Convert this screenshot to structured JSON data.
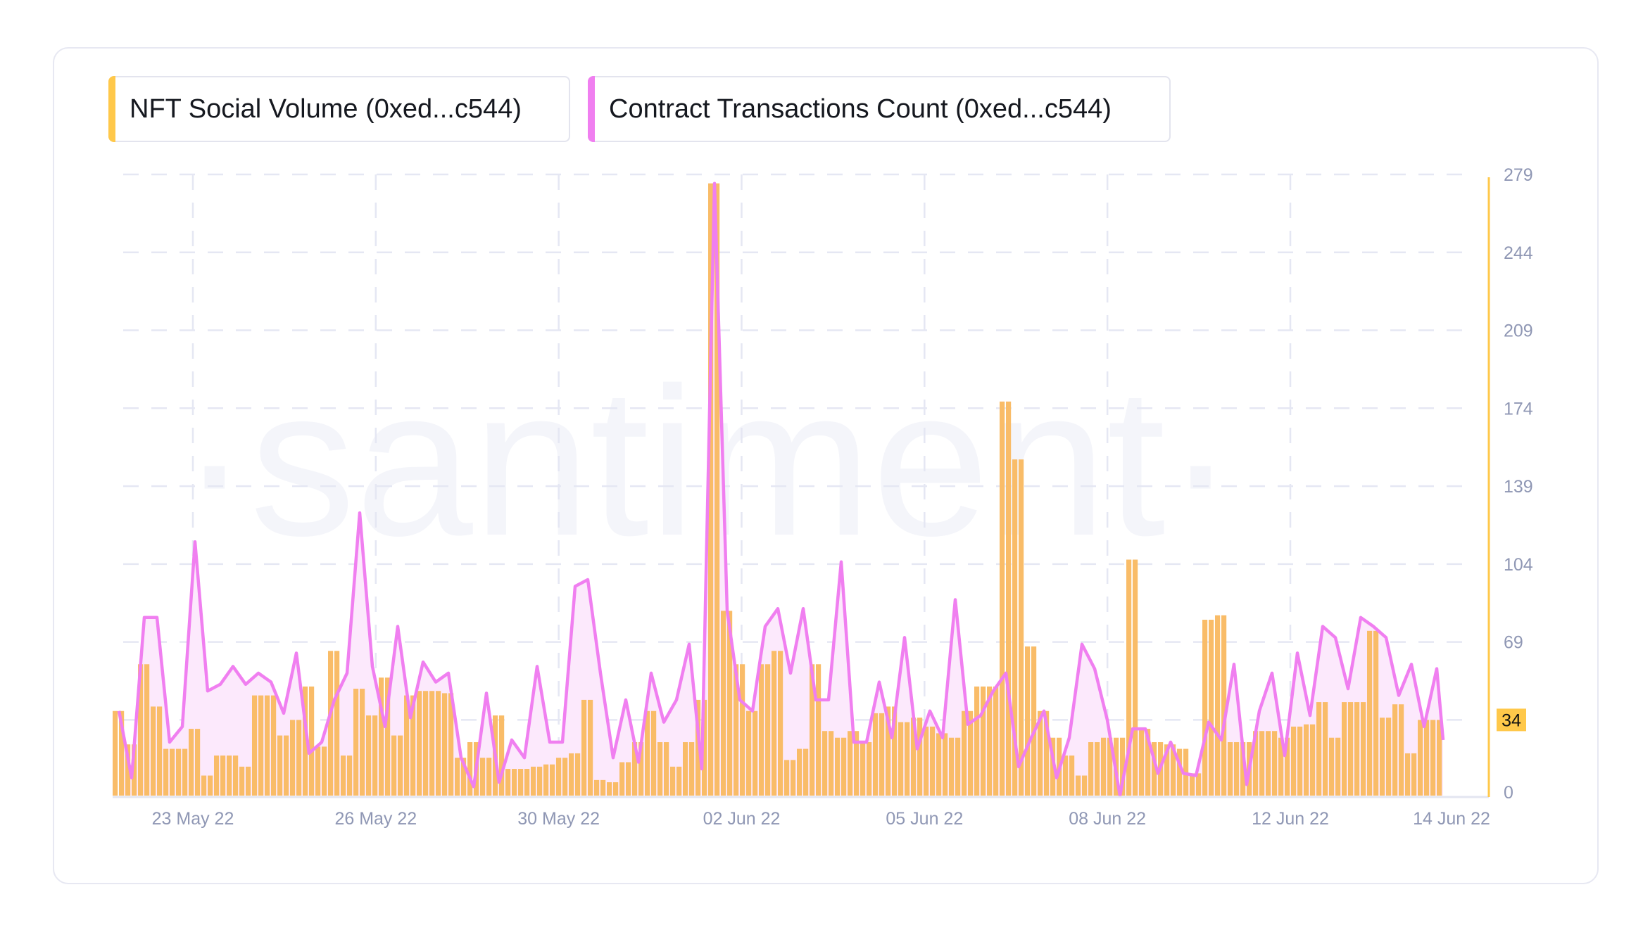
{
  "legend": [
    {
      "label": "NFT Social Volume (0xed...c544)",
      "color": "#ffc84a"
    },
    {
      "label": "Contract Transactions Count (0xed...c544)",
      "color": "#f07ff0"
    }
  ],
  "watermark": "·santiment·",
  "chart_data": {
    "type": "bar+line",
    "x_tick_labels": [
      "23 May 22",
      "26 May 22",
      "30 May 22",
      "02 Jun 22",
      "05 Jun 22",
      "08 Jun 22",
      "12 Jun 22",
      "14 Jun 22"
    ],
    "y_ticks": [
      0,
      34,
      69,
      104,
      139,
      174,
      209,
      244,
      279
    ],
    "ylim": [
      0,
      279
    ],
    "grid": true,
    "legend_placement": "top-left",
    "last_value_badge": "34",
    "series": [
      {
        "name": "NFT Social Volume (0xed...c544)",
        "type": "bar",
        "color": "#f9bc68",
        "values": [
          38,
          23,
          59,
          40,
          21,
          21,
          30,
          9,
          18,
          18,
          13,
          45,
          45,
          27,
          34,
          49,
          22,
          65,
          18,
          48,
          36,
          53,
          27,
          45,
          47,
          47,
          46,
          17,
          24,
          17,
          36,
          12,
          12,
          13,
          14,
          17,
          19,
          43,
          7,
          6,
          15,
          24,
          38,
          24,
          13,
          24,
          43,
          275,
          83,
          59,
          38,
          59,
          65,
          16,
          21,
          59,
          29,
          26,
          29,
          24,
          37,
          40,
          33,
          35,
          31,
          28,
          26,
          38,
          49,
          49,
          177,
          151,
          67,
          38,
          26,
          18,
          9,
          24,
          26,
          26,
          106,
          30,
          24,
          23,
          21,
          10,
          79,
          81,
          24,
          24,
          29,
          29,
          26,
          31,
          32,
          42,
          26,
          42,
          42,
          74,
          35,
          41,
          19,
          34,
          34
        ]
      },
      {
        "name": "Contract Transactions Count (0xed...c544)",
        "type": "line",
        "color": "#f07ff0",
        "values": [
          38,
          8,
          80,
          80,
          24,
          31,
          114,
          47,
          50,
          58,
          50,
          55,
          51,
          37,
          64,
          19,
          24,
          43,
          55,
          127,
          58,
          31,
          76,
          35,
          60,
          51,
          55,
          17,
          4,
          46,
          6,
          25,
          17,
          58,
          24,
          24,
          94,
          97,
          55,
          17,
          43,
          15,
          55,
          33,
          43,
          68,
          12,
          275,
          83,
          43,
          38,
          76,
          84,
          55,
          84,
          43,
          43,
          105,
          24,
          24,
          51,
          26,
          71,
          21,
          38,
          26,
          88,
          32,
          36,
          47,
          55,
          13,
          26,
          38,
          8,
          26,
          68,
          57,
          34,
          0,
          30,
          30,
          10,
          24,
          10,
          9,
          33,
          25,
          59,
          5,
          38,
          55,
          18,
          64,
          36,
          76,
          71,
          48,
          80,
          76,
          71,
          45,
          59,
          31,
          57,
          25
        ]
      }
    ]
  }
}
